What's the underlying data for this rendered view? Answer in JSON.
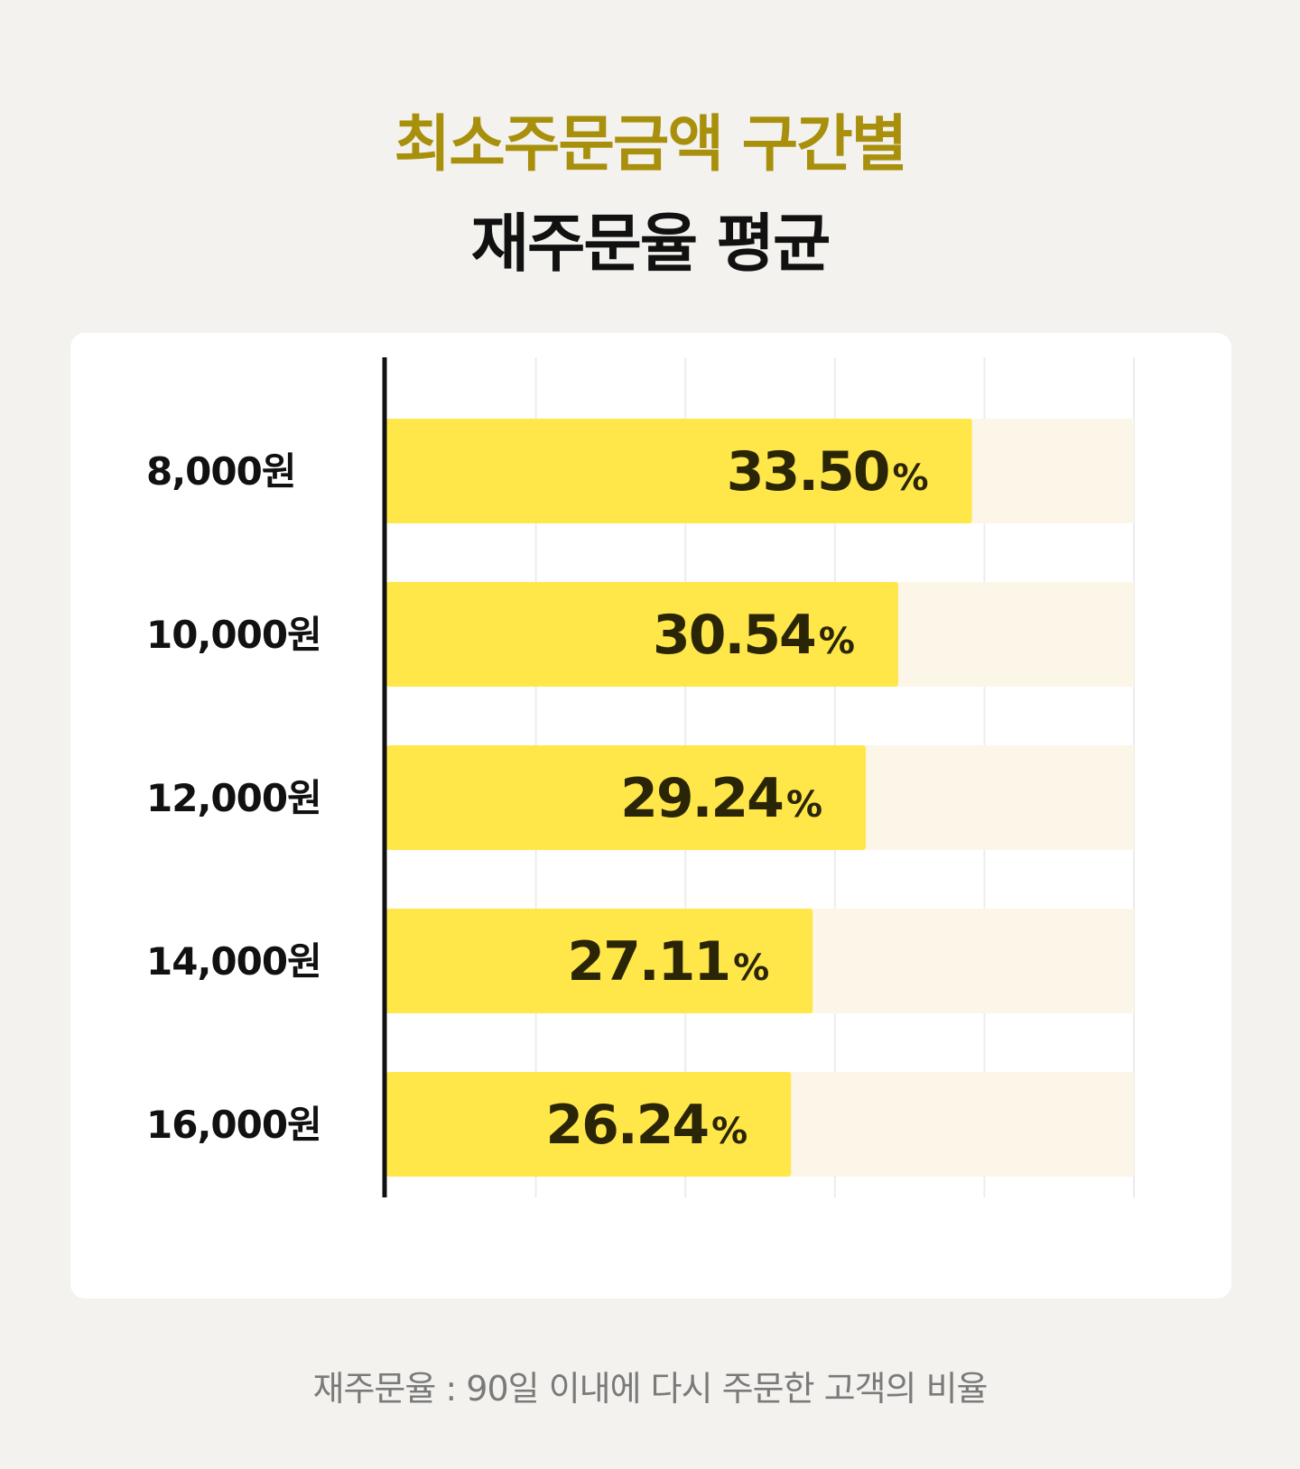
{
  "header": {
    "title_line1": "최소주문금액 구간별",
    "title_line2": "재주문율 평균"
  },
  "footnote": "재주문율 : 90일 이내에 다시 주문한 고객의 비율",
  "colors": {
    "background": "#f3f2ee",
    "title_accent": "#a8900d",
    "bar": "#ffe74a",
    "bar_track": "#fcf6e8",
    "axis": "#111111",
    "grid": "#ececec"
  },
  "chart_data": {
    "type": "bar",
    "orientation": "horizontal",
    "categories": [
      "8,000원",
      "10,000원",
      "12,000원",
      "14,000원",
      "16,000원"
    ],
    "values": [
      33.5,
      30.54,
      29.24,
      27.11,
      26.24
    ],
    "value_labels": [
      "33.50",
      "30.54",
      "29.24",
      "27.11",
      "26.24"
    ],
    "value_unit": "%",
    "xlim": [
      10,
      40
    ],
    "grid": true
  }
}
